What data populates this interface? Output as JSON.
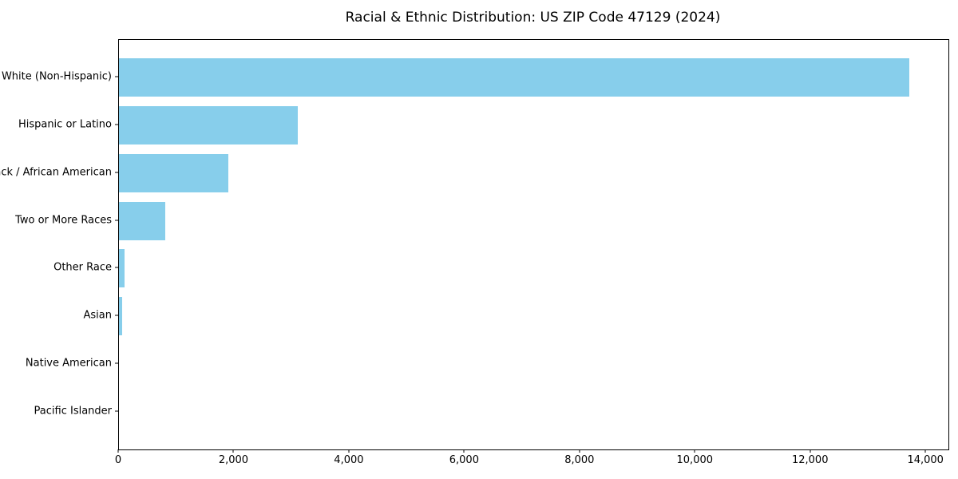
{
  "page": {
    "background": "#ffffff"
  },
  "chart_data": {
    "type": "bar",
    "orientation": "horizontal",
    "title": "Racial & Ethnic Distribution: US ZIP Code 47129 (2024)",
    "categories": [
      "White (Non-Hispanic)",
      "Hispanic or Latino",
      "Black / African American",
      "Two or More Races",
      "Other Race",
      "Asian",
      "Native American",
      "Pacific Islander"
    ],
    "values": [
      13700,
      3100,
      1900,
      800,
      100,
      60,
      0,
      0
    ],
    "xlabel": "",
    "ylabel": "",
    "xlim": [
      0,
      14385
    ],
    "xticks": {
      "values": [
        0,
        2000,
        4000,
        6000,
        8000,
        10000,
        12000,
        14000
      ],
      "labels": [
        "0",
        "2,000",
        "4,000",
        "6,000",
        "8,000",
        "10,000",
        "12,000",
        "14,000"
      ]
    },
    "bar_color": "#87CEEB",
    "axis_color": "#000000",
    "text_color": "#000000",
    "grid": false,
    "legend": false
  }
}
